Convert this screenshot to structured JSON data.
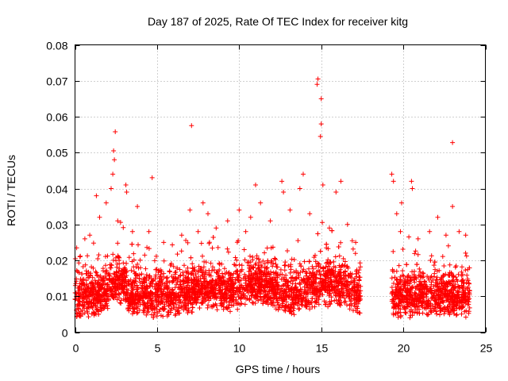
{
  "chart_data": {
    "type": "scatter",
    "title": "Day 187 of 2025, Rate Of TEC Index for receiver kitg",
    "xlabel": "GPS time / hours",
    "ylabel": "ROTI / TECUs",
    "xlim": [
      0,
      25
    ],
    "ylim": [
      0,
      0.08
    ],
    "xticks": [
      0,
      5,
      10,
      15,
      20,
      25
    ],
    "yticks": [
      0,
      0.01,
      0.02,
      0.03,
      0.04,
      0.05,
      0.06,
      0.07,
      0.08
    ],
    "xtick_labels": [
      "0",
      "5",
      "10",
      "15",
      "20",
      "25"
    ],
    "ytick_labels": [
      "0",
      "0.01",
      "0.02",
      "0.03",
      "0.04",
      "0.05",
      "0.06",
      "0.07",
      "0.08"
    ],
    "grid": true,
    "marker": "+",
    "color": "#ff0000",
    "data_gap_hours": [
      17.4,
      19.3
    ],
    "series": [
      {
        "name": "ROTI",
        "points": [
          [
            0.1,
            0.0235
          ],
          [
            0.3,
            0.021
          ],
          [
            0.6,
            0.026
          ],
          [
            0.9,
            0.027
          ],
          [
            1.3,
            0.038
          ],
          [
            1.5,
            0.032
          ],
          [
            1.9,
            0.036
          ],
          [
            2.2,
            0.04
          ],
          [
            2.3,
            0.044
          ],
          [
            2.35,
            0.0505
          ],
          [
            2.4,
            0.048
          ],
          [
            2.45,
            0.0558
          ],
          [
            2.6,
            0.031
          ],
          [
            3.1,
            0.041
          ],
          [
            3.15,
            0.039
          ],
          [
            3.5,
            0.028
          ],
          [
            3.8,
            0.035
          ],
          [
            4.5,
            0.028
          ],
          [
            4.7,
            0.043
          ],
          [
            5.4,
            0.025
          ],
          [
            6.5,
            0.027
          ],
          [
            7.1,
            0.0575
          ],
          [
            7.0,
            0.034
          ],
          [
            7.5,
            0.028
          ],
          [
            7.8,
            0.036
          ],
          [
            8.1,
            0.033
          ],
          [
            8.6,
            0.029
          ],
          [
            9.3,
            0.031
          ],
          [
            10.0,
            0.034
          ],
          [
            10.4,
            0.028
          ],
          [
            10.7,
            0.032
          ],
          [
            11.0,
            0.041
          ],
          [
            11.3,
            0.036
          ],
          [
            11.9,
            0.031
          ],
          [
            12.6,
            0.042
          ],
          [
            12.7,
            0.039
          ],
          [
            13.1,
            0.034
          ],
          [
            13.7,
            0.04
          ],
          [
            13.9,
            0.044
          ],
          [
            14.3,
            0.033
          ],
          [
            14.8,
            0.0705
          ],
          [
            14.75,
            0.069
          ],
          [
            15.0,
            0.065
          ],
          [
            15.0,
            0.058
          ],
          [
            14.95,
            0.0545
          ],
          [
            15.1,
            0.041
          ],
          [
            15.5,
            0.029
          ],
          [
            15.9,
            0.039
          ],
          [
            16.2,
            0.042
          ],
          [
            16.6,
            0.03
          ],
          [
            17.1,
            0.025
          ],
          [
            19.3,
            0.044
          ],
          [
            19.4,
            0.042
          ],
          [
            19.6,
            0.033
          ],
          [
            19.9,
            0.036
          ],
          [
            20.5,
            0.042
          ],
          [
            20.55,
            0.04
          ],
          [
            20.9,
            0.026
          ],
          [
            21.6,
            0.028
          ],
          [
            22.1,
            0.032
          ],
          [
            22.6,
            0.027
          ],
          [
            23.0,
            0.0528
          ],
          [
            23.0,
            0.035
          ],
          [
            23.4,
            0.028
          ],
          [
            23.8,
            0.027
          ]
        ]
      }
    ]
  }
}
